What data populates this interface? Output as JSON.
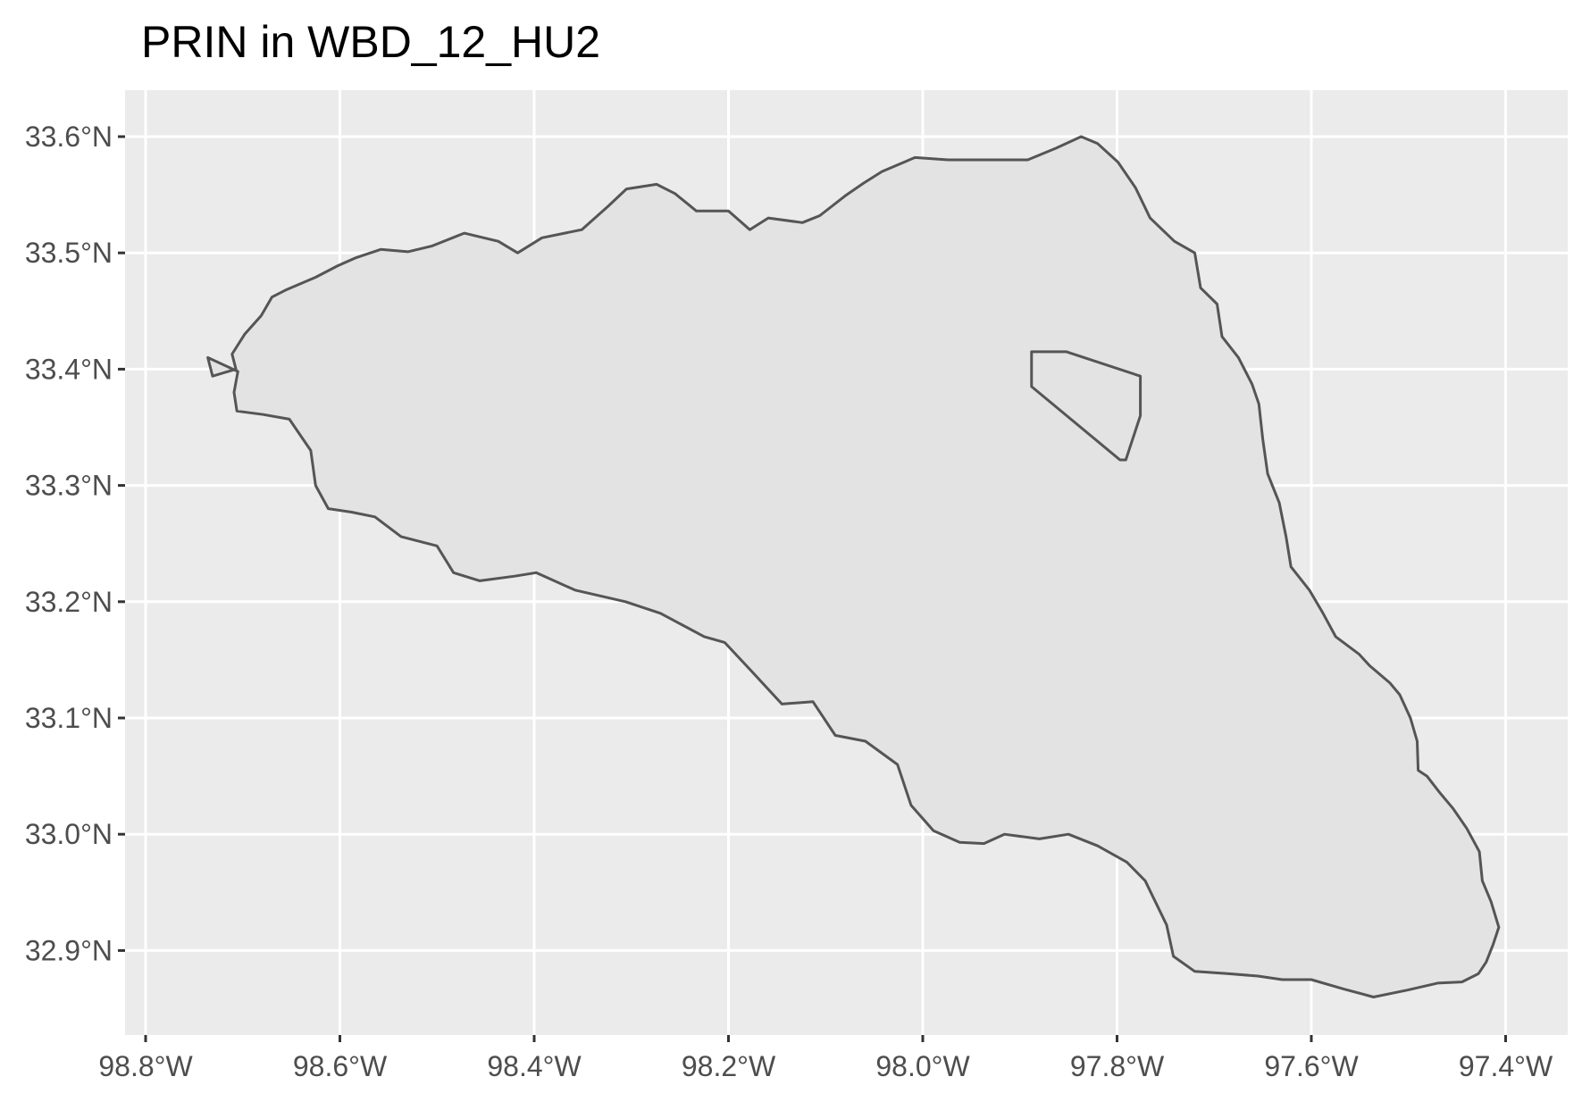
{
  "map": {
    "title": "PRIN in WBD_12_HU2",
    "panel_background": "#ebebeb",
    "grid_color": "#ffffff",
    "polygon_fill": "#e3e3e3",
    "polygon_stroke": "#555555",
    "x_axis": {
      "ticks": [
        {
          "value": -98.8,
          "label": "98.8°W"
        },
        {
          "value": -98.6,
          "label": "98.6°W"
        },
        {
          "value": -98.4,
          "label": "98.4°W"
        },
        {
          "value": -98.2,
          "label": "98.2°W"
        },
        {
          "value": -98.0,
          "label": "98.0°W"
        },
        {
          "value": -97.8,
          "label": "97.8°W"
        },
        {
          "value": -97.6,
          "label": "97.6°W"
        },
        {
          "value": -97.4,
          "label": "97.4°W"
        }
      ]
    },
    "y_axis": {
      "ticks": [
        {
          "value": 33.6,
          "label": "33.6°N"
        },
        {
          "value": 33.5,
          "label": "33.5°N"
        },
        {
          "value": 33.4,
          "label": "33.4°N"
        },
        {
          "value": 33.3,
          "label": "33.3°N"
        },
        {
          "value": 33.2,
          "label": "33.2°N"
        },
        {
          "value": 33.1,
          "label": "33.1°N"
        },
        {
          "value": 33.0,
          "label": "33.0°N"
        },
        {
          "value": 32.9,
          "label": "32.9°N"
        }
      ]
    },
    "watershed_boundary": [
      [
        -98.736,
        33.41
      ],
      [
        -98.731,
        33.394
      ],
      [
        -98.707,
        33.4
      ],
      [
        -98.711,
        33.413
      ],
      [
        -98.698,
        33.43
      ],
      [
        -98.681,
        33.446
      ],
      [
        -98.67,
        33.462
      ],
      [
        -98.656,
        33.468
      ],
      [
        -98.625,
        33.479
      ],
      [
        -98.602,
        33.489
      ],
      [
        -98.583,
        33.496
      ],
      [
        -98.558,
        33.503
      ],
      [
        -98.53,
        33.501
      ],
      [
        -98.505,
        33.506
      ],
      [
        -98.472,
        33.517
      ],
      [
        -98.437,
        33.51
      ],
      [
        -98.417,
        33.5
      ],
      [
        -98.392,
        33.513
      ],
      [
        -98.351,
        33.52
      ],
      [
        -98.324,
        33.54
      ],
      [
        -98.305,
        33.555
      ],
      [
        -98.274,
        33.559
      ],
      [
        -98.255,
        33.551
      ],
      [
        -98.233,
        33.536
      ],
      [
        -98.2,
        33.536
      ],
      [
        -98.178,
        33.52
      ],
      [
        -98.159,
        33.53
      ],
      [
        -98.124,
        33.526
      ],
      [
        -98.106,
        33.532
      ],
      [
        -98.08,
        33.549
      ],
      [
        -98.061,
        33.56
      ],
      [
        -98.042,
        33.57
      ],
      [
        -98.008,
        33.582
      ],
      [
        -97.974,
        33.58
      ],
      [
        -97.922,
        33.58
      ],
      [
        -97.892,
        33.58
      ],
      [
        -97.863,
        33.59
      ],
      [
        -97.837,
        33.6
      ],
      [
        -97.82,
        33.594
      ],
      [
        -97.799,
        33.578
      ],
      [
        -97.781,
        33.556
      ],
      [
        -97.766,
        33.53
      ],
      [
        -97.741,
        33.51
      ],
      [
        -97.72,
        33.5
      ],
      [
        -97.714,
        33.47
      ],
      [
        -97.697,
        33.456
      ],
      [
        -97.692,
        33.428
      ],
      [
        -97.675,
        33.41
      ],
      [
        -97.661,
        33.387
      ],
      [
        -97.654,
        33.37
      ],
      [
        -97.65,
        33.34
      ],
      [
        -97.645,
        33.31
      ],
      [
        -97.633,
        33.285
      ],
      [
        -97.626,
        33.256
      ],
      [
        -97.621,
        33.23
      ],
      [
        -97.602,
        33.21
      ],
      [
        -97.588,
        33.19
      ],
      [
        -97.575,
        33.17
      ],
      [
        -97.551,
        33.155
      ],
      [
        -97.54,
        33.145
      ],
      [
        -97.519,
        33.13
      ],
      [
        -97.509,
        33.12
      ],
      [
        -97.498,
        33.1
      ],
      [
        -97.491,
        33.08
      ],
      [
        -97.49,
        33.055
      ],
      [
        -97.481,
        33.05
      ],
      [
        -97.468,
        33.036
      ],
      [
        -97.454,
        33.022
      ],
      [
        -97.44,
        33.005
      ],
      [
        -97.427,
        32.985
      ],
      [
        -97.424,
        32.96
      ],
      [
        -97.415,
        32.942
      ],
      [
        -97.407,
        32.92
      ],
      [
        -97.413,
        32.905
      ],
      [
        -97.42,
        32.89
      ],
      [
        -97.428,
        32.88
      ],
      [
        -97.445,
        32.873
      ],
      [
        -97.47,
        32.872
      ],
      [
        -97.501,
        32.866
      ],
      [
        -97.536,
        32.86
      ],
      [
        -97.567,
        32.867
      ],
      [
        -97.6,
        32.875
      ],
      [
        -97.63,
        32.875
      ],
      [
        -97.655,
        32.878
      ],
      [
        -97.685,
        32.88
      ],
      [
        -97.72,
        32.882
      ],
      [
        -97.742,
        32.895
      ],
      [
        -97.749,
        32.922
      ],
      [
        -97.771,
        32.96
      ],
      [
        -97.79,
        32.976
      ],
      [
        -97.82,
        32.99
      ],
      [
        -97.85,
        33.0
      ],
      [
        -97.88,
        32.996
      ],
      [
        -97.916,
        33.0
      ],
      [
        -97.937,
        32.992
      ],
      [
        -97.962,
        32.993
      ],
      [
        -97.989,
        33.003
      ],
      [
        -98.012,
        33.025
      ],
      [
        -98.026,
        33.06
      ],
      [
        -98.059,
        33.08
      ],
      [
        -98.09,
        33.085
      ],
      [
        -98.113,
        33.114
      ],
      [
        -98.145,
        33.112
      ],
      [
        -98.176,
        33.14
      ],
      [
        -98.204,
        33.165
      ],
      [
        -98.225,
        33.17
      ],
      [
        -98.27,
        33.19
      ],
      [
        -98.306,
        33.2
      ],
      [
        -98.358,
        33.21
      ],
      [
        -98.398,
        33.225
      ],
      [
        -98.42,
        33.222
      ],
      [
        -98.456,
        33.218
      ],
      [
        -98.483,
        33.225
      ],
      [
        -98.5,
        33.248
      ],
      [
        -98.537,
        33.256
      ],
      [
        -98.564,
        33.273
      ],
      [
        -98.588,
        33.277
      ],
      [
        -98.612,
        33.28
      ],
      [
        -98.625,
        33.3
      ],
      [
        -98.63,
        33.33
      ],
      [
        -98.652,
        33.357
      ],
      [
        -98.679,
        33.361
      ],
      [
        -98.706,
        33.364
      ],
      [
        -98.709,
        33.38
      ],
      [
        -98.705,
        33.398
      ],
      [
        -98.736,
        33.41
      ]
    ],
    "inner_boundary": [
      [
        -97.888,
        33.415
      ],
      [
        -97.852,
        33.415
      ],
      [
        -97.776,
        33.394
      ],
      [
        -97.776,
        33.36
      ],
      [
        -97.791,
        33.322
      ],
      [
        -97.797,
        33.322
      ],
      [
        -97.888,
        33.385
      ],
      [
        -97.888,
        33.415
      ]
    ]
  }
}
